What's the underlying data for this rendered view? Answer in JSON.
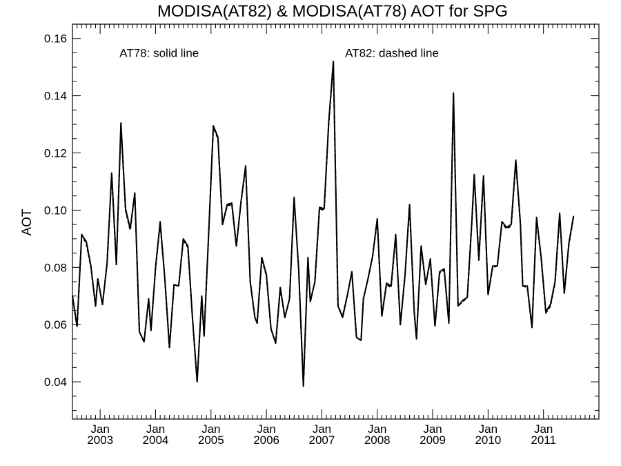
{
  "chart_data": {
    "type": "line",
    "title": "MODISA(AT82) & MODISA(AT78)  AOT for SPG",
    "ylabel": "AOT",
    "xlabel": "",
    "ylim": [
      0.027,
      0.165
    ],
    "xlim": [
      2002.5,
      2012.0
    ],
    "y_ticks": [
      0.04,
      0.06,
      0.08,
      0.1,
      0.12,
      0.14,
      0.16
    ],
    "y_tick_labels": [
      "0.04",
      "0.06",
      "0.08",
      "0.10",
      "0.12",
      "0.14",
      "0.16"
    ],
    "x_ticks": [
      {
        "value": 2003.0,
        "month": "Jan",
        "year": "2003"
      },
      {
        "value": 2004.0,
        "month": "Jan",
        "year": "2004"
      },
      {
        "value": 2005.0,
        "month": "Jan",
        "year": "2005"
      },
      {
        "value": 2006.0,
        "month": "Jan",
        "year": "2006"
      },
      {
        "value": 2007.0,
        "month": "Jan",
        "year": "2007"
      },
      {
        "value": 2008.0,
        "month": "Jan",
        "year": "2008"
      },
      {
        "value": 2009.0,
        "month": "Jan",
        "year": "2009"
      },
      {
        "value": 2010.0,
        "month": "Jan",
        "year": "2010"
      },
      {
        "value": 2011.0,
        "month": "Jan",
        "year": "2011"
      }
    ],
    "annotations": [
      {
        "text": "AT78: solid line",
        "x": 2003.35,
        "y": 0.1535
      },
      {
        "text": "AT82: dashed line",
        "x": 2007.42,
        "y": 0.1535
      }
    ],
    "grid": false,
    "series": [
      {
        "name": "AT78",
        "style": "solid",
        "points": [
          [
            2002.5,
            0.07
          ],
          [
            2002.583,
            0.0595
          ],
          [
            2002.667,
            0.0915
          ],
          [
            2002.75,
            0.089
          ],
          [
            2002.833,
            0.0805
          ],
          [
            2002.917,
            0.0665
          ],
          [
            2002.958,
            0.076
          ],
          [
            2003.042,
            0.067
          ],
          [
            2003.125,
            0.0815
          ],
          [
            2003.208,
            0.113
          ],
          [
            2003.292,
            0.081
          ],
          [
            2003.375,
            0.1305
          ],
          [
            2003.458,
            0.1005
          ],
          [
            2003.542,
            0.0935
          ],
          [
            2003.625,
            0.106
          ],
          [
            2003.708,
            0.0575
          ],
          [
            2003.792,
            0.054
          ],
          [
            2003.875,
            0.069
          ],
          [
            2003.917,
            0.058
          ],
          [
            2004.0,
            0.08
          ],
          [
            2004.083,
            0.096
          ],
          [
            2004.167,
            0.076
          ],
          [
            2004.25,
            0.052
          ],
          [
            2004.333,
            0.074
          ],
          [
            2004.417,
            0.0735
          ],
          [
            2004.5,
            0.09
          ],
          [
            2004.583,
            0.0875
          ],
          [
            2004.667,
            0.062
          ],
          [
            2004.75,
            0.04
          ],
          [
            2004.833,
            0.07
          ],
          [
            2004.875,
            0.056
          ],
          [
            2004.958,
            0.092
          ],
          [
            2005.042,
            0.1295
          ],
          [
            2005.125,
            0.1255
          ],
          [
            2005.208,
            0.095
          ],
          [
            2005.292,
            0.102
          ],
          [
            2005.375,
            0.1025
          ],
          [
            2005.458,
            0.0875
          ],
          [
            2005.542,
            0.103
          ],
          [
            2005.625,
            0.1155
          ],
          [
            2005.708,
            0.075
          ],
          [
            2005.792,
            0.0625
          ],
          [
            2005.833,
            0.0605
          ],
          [
            2005.917,
            0.0835
          ],
          [
            2006.0,
            0.0775
          ],
          [
            2006.083,
            0.0585
          ],
          [
            2006.167,
            0.0535
          ],
          [
            2006.25,
            0.073
          ],
          [
            2006.333,
            0.0625
          ],
          [
            2006.417,
            0.069
          ],
          [
            2006.5,
            0.1045
          ],
          [
            2006.583,
            0.079
          ],
          [
            2006.667,
            0.0385
          ],
          [
            2006.75,
            0.0835
          ],
          [
            2006.792,
            0.068
          ],
          [
            2006.875,
            0.075
          ],
          [
            2006.958,
            0.101
          ],
          [
            2007.042,
            0.1005
          ],
          [
            2007.125,
            0.131
          ],
          [
            2007.208,
            0.152
          ],
          [
            2007.292,
            0.0665
          ],
          [
            2007.375,
            0.0625
          ],
          [
            2007.458,
            0.07
          ],
          [
            2007.542,
            0.0785
          ],
          [
            2007.625,
            0.0555
          ],
          [
            2007.708,
            0.0545
          ],
          [
            2007.75,
            0.069
          ],
          [
            2007.833,
            0.076
          ],
          [
            2007.917,
            0.084
          ],
          [
            2008.0,
            0.097
          ],
          [
            2008.083,
            0.063
          ],
          [
            2008.167,
            0.0745
          ],
          [
            2008.25,
            0.0735
          ],
          [
            2008.333,
            0.0915
          ],
          [
            2008.417,
            0.06
          ],
          [
            2008.5,
            0.077
          ],
          [
            2008.583,
            0.102
          ],
          [
            2008.667,
            0.0645
          ],
          [
            2008.708,
            0.055
          ],
          [
            2008.792,
            0.0875
          ],
          [
            2008.875,
            0.074
          ],
          [
            2008.958,
            0.083
          ],
          [
            2009.042,
            0.0595
          ],
          [
            2009.125,
            0.0785
          ],
          [
            2009.208,
            0.0795
          ],
          [
            2009.292,
            0.0605
          ],
          [
            2009.375,
            0.141
          ],
          [
            2009.458,
            0.0665
          ],
          [
            2009.542,
            0.0685
          ],
          [
            2009.625,
            0.0695
          ],
          [
            2009.708,
            0.0965
          ],
          [
            2009.75,
            0.1125
          ],
          [
            2009.833,
            0.083
          ],
          [
            2009.917,
            0.112
          ],
          [
            2010.0,
            0.0705
          ],
          [
            2010.083,
            0.0805
          ],
          [
            2010.167,
            0.0805
          ],
          [
            2010.25,
            0.096
          ],
          [
            2010.333,
            0.094
          ],
          [
            2010.417,
            0.095
          ],
          [
            2010.5,
            0.1175
          ],
          [
            2010.583,
            0.0955
          ],
          [
            2010.625,
            0.0735
          ],
          [
            2010.708,
            0.0735
          ],
          [
            2010.792,
            0.059
          ],
          [
            2010.875,
            0.0975
          ],
          [
            2010.958,
            0.0835
          ],
          [
            2011.042,
            0.0645
          ],
          [
            2011.125,
            0.067
          ],
          [
            2011.208,
            0.075
          ],
          [
            2011.292,
            0.099
          ],
          [
            2011.375,
            0.071
          ],
          [
            2011.458,
            0.0885
          ],
          [
            2011.542,
            0.098
          ]
        ]
      },
      {
        "name": "AT82",
        "style": "dashed",
        "points": [
          [
            2002.5,
            0.07
          ],
          [
            2002.583,
            0.059
          ],
          [
            2002.667,
            0.091
          ],
          [
            2002.75,
            0.0885
          ],
          [
            2002.833,
            0.08
          ],
          [
            2002.917,
            0.0665
          ],
          [
            2002.958,
            0.076
          ],
          [
            2003.042,
            0.067
          ],
          [
            2003.125,
            0.0815
          ],
          [
            2003.208,
            0.1125
          ],
          [
            2003.292,
            0.081
          ],
          [
            2003.375,
            0.13
          ],
          [
            2003.458,
            0.1
          ],
          [
            2003.542,
            0.093
          ],
          [
            2003.625,
            0.106
          ],
          [
            2003.708,
            0.0575
          ],
          [
            2003.792,
            0.054
          ],
          [
            2003.875,
            0.069
          ],
          [
            2003.917,
            0.058
          ],
          [
            2004.0,
            0.08
          ],
          [
            2004.083,
            0.0955
          ],
          [
            2004.167,
            0.076
          ],
          [
            2004.25,
            0.052
          ],
          [
            2004.333,
            0.074
          ],
          [
            2004.417,
            0.0735
          ],
          [
            2004.5,
            0.0895
          ],
          [
            2004.583,
            0.087
          ],
          [
            2004.667,
            0.062
          ],
          [
            2004.75,
            0.04
          ],
          [
            2004.833,
            0.07
          ],
          [
            2004.875,
            0.056
          ],
          [
            2004.958,
            0.0915
          ],
          [
            2005.042,
            0.129
          ],
          [
            2005.125,
            0.125
          ],
          [
            2005.208,
            0.095
          ],
          [
            2005.292,
            0.1015
          ],
          [
            2005.375,
            0.102
          ],
          [
            2005.458,
            0.0875
          ],
          [
            2005.542,
            0.103
          ],
          [
            2005.625,
            0.115
          ],
          [
            2005.708,
            0.075
          ],
          [
            2005.792,
            0.0625
          ],
          [
            2005.833,
            0.0605
          ],
          [
            2005.917,
            0.083
          ],
          [
            2006.0,
            0.077
          ],
          [
            2006.083,
            0.0585
          ],
          [
            2006.167,
            0.0535
          ],
          [
            2006.25,
            0.0725
          ],
          [
            2006.333,
            0.0625
          ],
          [
            2006.417,
            0.069
          ],
          [
            2006.5,
            0.104
          ],
          [
            2006.583,
            0.079
          ],
          [
            2006.667,
            0.0385
          ],
          [
            2006.75,
            0.083
          ],
          [
            2006.792,
            0.068
          ],
          [
            2006.875,
            0.075
          ],
          [
            2006.958,
            0.1005
          ],
          [
            2007.042,
            0.1
          ],
          [
            2007.125,
            0.1305
          ],
          [
            2007.208,
            0.1515
          ],
          [
            2007.292,
            0.0665
          ],
          [
            2007.375,
            0.063
          ],
          [
            2007.458,
            0.07
          ],
          [
            2007.542,
            0.0785
          ],
          [
            2007.625,
            0.0555
          ],
          [
            2007.708,
            0.0545
          ],
          [
            2007.75,
            0.069
          ],
          [
            2007.833,
            0.076
          ],
          [
            2007.917,
            0.084
          ],
          [
            2008.0,
            0.0965
          ],
          [
            2008.083,
            0.063
          ],
          [
            2008.167,
            0.074
          ],
          [
            2008.25,
            0.073
          ],
          [
            2008.333,
            0.091
          ],
          [
            2008.417,
            0.06
          ],
          [
            2008.5,
            0.077
          ],
          [
            2008.583,
            0.1015
          ],
          [
            2008.667,
            0.0645
          ],
          [
            2008.708,
            0.055
          ],
          [
            2008.792,
            0.087
          ],
          [
            2008.875,
            0.074
          ],
          [
            2008.958,
            0.0825
          ],
          [
            2009.042,
            0.0595
          ],
          [
            2009.125,
            0.078
          ],
          [
            2009.208,
            0.079
          ],
          [
            2009.292,
            0.0605
          ],
          [
            2009.375,
            0.1405
          ],
          [
            2009.458,
            0.0665
          ],
          [
            2009.542,
            0.068
          ],
          [
            2009.625,
            0.0695
          ],
          [
            2009.708,
            0.096
          ],
          [
            2009.75,
            0.112
          ],
          [
            2009.833,
            0.0825
          ],
          [
            2009.917,
            0.1115
          ],
          [
            2010.0,
            0.0705
          ],
          [
            2010.083,
            0.08
          ],
          [
            2010.167,
            0.0805
          ],
          [
            2010.25,
            0.0955
          ],
          [
            2010.333,
            0.0935
          ],
          [
            2010.417,
            0.0945
          ],
          [
            2010.5,
            0.117
          ],
          [
            2010.583,
            0.095
          ],
          [
            2010.625,
            0.0735
          ],
          [
            2010.708,
            0.073
          ],
          [
            2010.792,
            0.059
          ],
          [
            2010.875,
            0.097
          ],
          [
            2010.958,
            0.083
          ],
          [
            2011.042,
            0.064
          ],
          [
            2011.125,
            0.0665
          ],
          [
            2011.208,
            0.0745
          ],
          [
            2011.292,
            0.0985
          ],
          [
            2011.375,
            0.071
          ],
          [
            2011.458,
            0.088
          ],
          [
            2011.542,
            0.0975
          ]
        ]
      }
    ]
  }
}
